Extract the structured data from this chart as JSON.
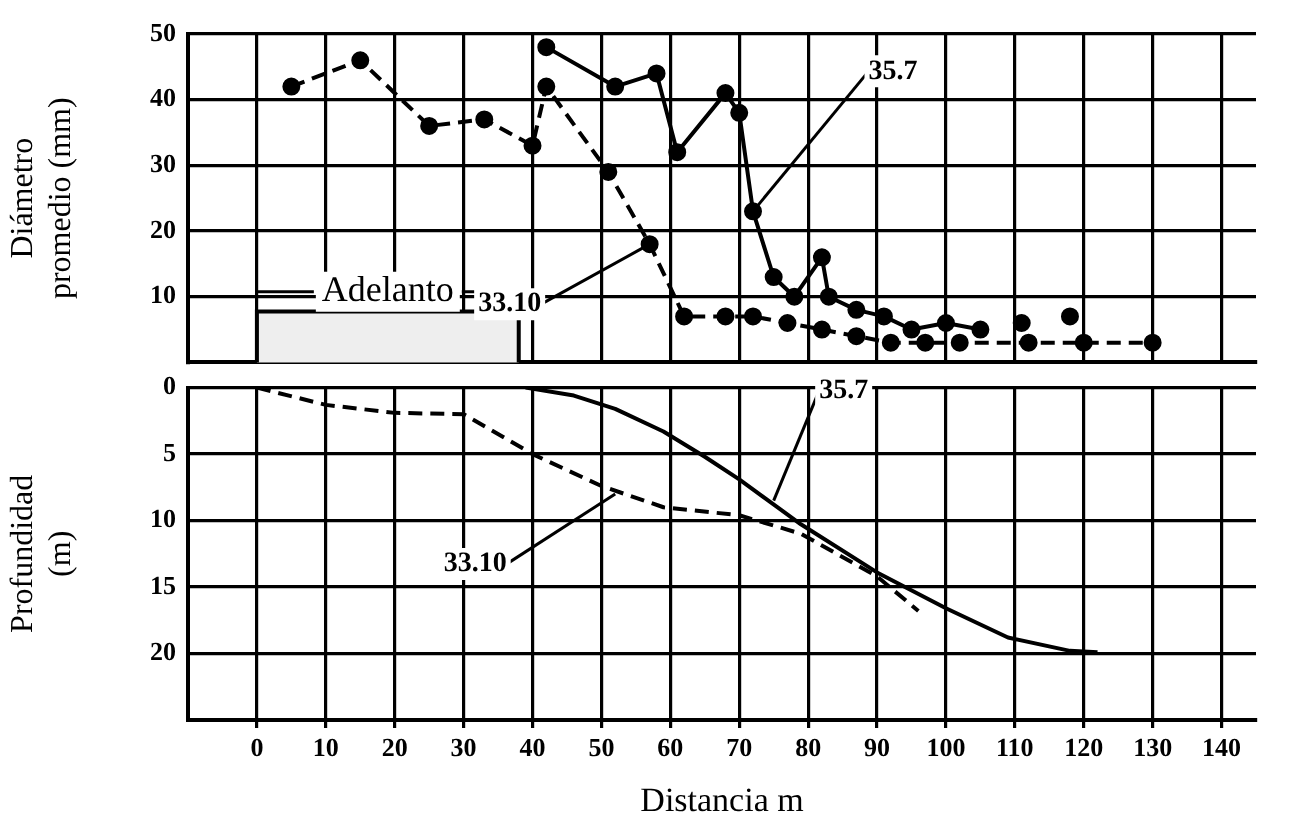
{
  "chart_data": [
    {
      "type": "line",
      "ylabel": "Diámetro promedio (mm)",
      "xlim": [
        -10,
        145
      ],
      "xticks": [
        0,
        10,
        20,
        30,
        40,
        50,
        60,
        70,
        80,
        90,
        100,
        110,
        120,
        130,
        140
      ],
      "ylim": [
        0,
        50
      ],
      "yticks": [
        10,
        20,
        30,
        40,
        50
      ],
      "tick_labels": "y",
      "grid": true,
      "legend": false,
      "marker": "circle",
      "bands": [
        {
          "axis": "x",
          "from": 0,
          "to": 38,
          "label": "Adelanto",
          "color": "#eeeeee"
        }
      ],
      "annotations": [
        {
          "text": "33.10",
          "x": 57,
          "y": 18
        },
        {
          "text": "35.7",
          "x": 72,
          "y": 23
        }
      ],
      "series": [
        {
          "color": "#000000",
          "line_style": "dashed",
          "x": [
            5,
            15,
            25,
            33,
            40,
            42,
            51,
            57,
            62,
            68,
            72,
            77,
            82,
            87,
            92,
            97,
            102,
            112,
            120,
            130
          ],
          "values": [
            42,
            46,
            36,
            37,
            33,
            42,
            29,
            18,
            7,
            7,
            7,
            6,
            5,
            4,
            3,
            3,
            3,
            3,
            3,
            3
          ]
        },
        {
          "color": "#000000",
          "line_style": "solid",
          "x": [
            42,
            52,
            58,
            61,
            68,
            70,
            72,
            75,
            78,
            82,
            83,
            87,
            91,
            95,
            100,
            105
          ],
          "values": [
            48,
            42,
            44,
            32,
            41,
            38,
            23,
            13,
            10,
            16,
            10,
            8,
            7,
            5,
            6,
            5
          ]
        },
        {
          "type": "scatter",
          "color": "#000000",
          "x": [
            111,
            118
          ],
          "values": [
            6,
            7
          ]
        }
      ]
    },
    {
      "type": "line",
      "xlabel": "Distancia m",
      "ylabel": "Profundidad (m)",
      "xlim": [
        -10,
        145
      ],
      "xticks": [
        0,
        10,
        20,
        30,
        40,
        50,
        60,
        70,
        80,
        90,
        100,
        110,
        120,
        130,
        140
      ],
      "ylim": [
        25,
        0
      ],
      "yticks": [
        0,
        5,
        10,
        15,
        20
      ],
      "grid": true,
      "legend": false,
      "marker": "none",
      "annotations": [
        {
          "text": "35.7",
          "x": 75,
          "y": 8.5
        },
        {
          "text": "33.10",
          "x": 52,
          "y": 8
        }
      ],
      "series": [
        {
          "color": "#000000",
          "line_style": "dashed",
          "x": [
            0,
            10,
            20,
            30,
            40,
            50,
            59,
            70,
            79,
            90,
            96
          ],
          "values": [
            0,
            1.3,
            1.9,
            2,
            5,
            7.4,
            9,
            9.6,
            11,
            14.2,
            16.8
          ]
        },
        {
          "color": "#000000",
          "line_style": "solid",
          "x": [
            39,
            46,
            52,
            59,
            65,
            70,
            79,
            90,
            100,
            109,
            118,
            122
          ],
          "values": [
            0,
            0.6,
            1.6,
            3.3,
            5.2,
            6.9,
            10.3,
            13.9,
            16.6,
            18.8,
            19.8,
            19.9
          ]
        }
      ]
    }
  ]
}
